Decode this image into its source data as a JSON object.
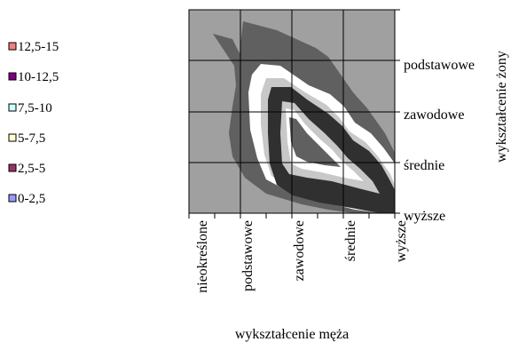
{
  "chart_data": {
    "type": "contour",
    "title": "",
    "xlabel": "wykształcenie męża",
    "ylabel": "wykształcenie żony",
    "x_categories": [
      "nieokreślone",
      "podstawowe",
      "zawodowe",
      "średnie",
      "wyższe"
    ],
    "y_categories": [
      "wyższe",
      "średnie",
      "zawodowe",
      "podstawowe"
    ],
    "legend": [
      {
        "label": "12,5-15",
        "color": "#f08080"
      },
      {
        "label": "10-12,5",
        "color": "#800080"
      },
      {
        "label": "7,5-10",
        "color": "#ccffff"
      },
      {
        "label": "5-7,5",
        "color": "#ffffcc"
      },
      {
        "label": "2,5-5",
        "color": "#993366"
      },
      {
        "label": "0-2,5",
        "color": "#9999ff"
      }
    ],
    "band_colors": {
      "0-2,5": "#a0a0a0",
      "2,5-5": "#606060",
      "5-7,5": "#ffffff",
      "7,5-10": "#c8c8c8",
      "10-12,5": "#303030"
    },
    "grid": true
  }
}
